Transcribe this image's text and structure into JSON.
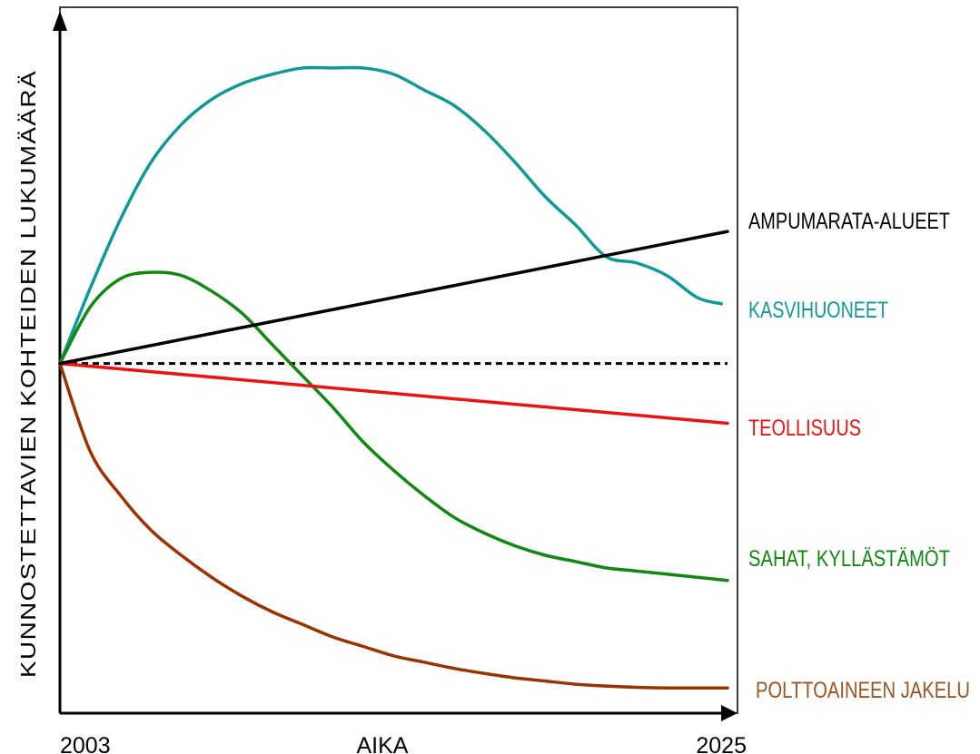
{
  "chart_data": {
    "type": "line",
    "title": "",
    "xlabel": "AIKA",
    "ylabel": "KUNNOSTETTAVIEN KOHTEIDEN LUKUMÄÄRÄ",
    "xlim": [
      2003,
      2025
    ],
    "ylim": [
      0,
      100
    ],
    "x_tick_labels": [
      "2003",
      "2025"
    ],
    "baseline": {
      "style": "dashed",
      "color": "#000000",
      "value": 52
    },
    "series": [
      {
        "name": "AMPUMARATA-ALUEET",
        "color": "#000000",
        "points": [
          [
            2003,
            52
          ],
          [
            2025,
            73
          ]
        ]
      },
      {
        "name": "KASVIHUONEET",
        "color": "#119999",
        "points": [
          [
            2003,
            52
          ],
          [
            2004,
            64
          ],
          [
            2005,
            75
          ],
          [
            2006,
            84
          ],
          [
            2007,
            90
          ],
          [
            2008,
            94
          ],
          [
            2009,
            96.5
          ],
          [
            2010,
            98
          ],
          [
            2011,
            99
          ],
          [
            2012,
            99
          ],
          [
            2013,
            99
          ],
          [
            2014,
            98
          ],
          [
            2015,
            95.5
          ],
          [
            2016,
            93
          ],
          [
            2017,
            89
          ],
          [
            2018,
            84
          ],
          [
            2019,
            78.5
          ],
          [
            2020,
            74
          ],
          [
            2021,
            69
          ],
          [
            2022,
            68
          ],
          [
            2023,
            66
          ],
          [
            2024,
            62.5
          ],
          [
            2024.8,
            61.5
          ]
        ]
      },
      {
        "name": "TEOLLISUUS",
        "color": "#ee1111",
        "points": [
          [
            2003,
            52
          ],
          [
            2025,
            42.5
          ]
        ]
      },
      {
        "name": "SAHAT, KYLLÄSTÄMÖT",
        "color": "#118811",
        "points": [
          [
            2003,
            52
          ],
          [
            2004,
            61
          ],
          [
            2005,
            65.5
          ],
          [
            2006,
            66.5
          ],
          [
            2007,
            66
          ],
          [
            2008,
            63.5
          ],
          [
            2009,
            60
          ],
          [
            2010,
            55
          ],
          [
            2011,
            50
          ],
          [
            2012,
            45
          ],
          [
            2013,
            39.5
          ],
          [
            2014,
            35
          ],
          [
            2015,
            31
          ],
          [
            2016,
            27.5
          ],
          [
            2017,
            25
          ],
          [
            2018,
            23
          ],
          [
            2019,
            21.5
          ],
          [
            2020,
            20.5
          ],
          [
            2021,
            19.5
          ],
          [
            2022,
            19
          ],
          [
            2023,
            18.5
          ],
          [
            2024,
            18
          ],
          [
            2025,
            17.5
          ]
        ]
      },
      {
        "name": "POLTTOAINEEN JAKELU",
        "color": "#993300",
        "label_color": "#995522",
        "points": [
          [
            2003,
            52
          ],
          [
            2004,
            38
          ],
          [
            2005,
            31
          ],
          [
            2006,
            25.5
          ],
          [
            2007,
            21.5
          ],
          [
            2008,
            18
          ],
          [
            2009,
            15
          ],
          [
            2010,
            12.5
          ],
          [
            2011,
            10.5
          ],
          [
            2012,
            8.5
          ],
          [
            2013,
            7
          ],
          [
            2014,
            5.5
          ],
          [
            2015,
            4.5
          ],
          [
            2016,
            3.5
          ],
          [
            2017,
            2.7
          ],
          [
            2018,
            2
          ],
          [
            2019,
            1.5
          ],
          [
            2020,
            1
          ],
          [
            2021,
            0.7
          ],
          [
            2022,
            0.5
          ],
          [
            2023,
            0.4
          ],
          [
            2025,
            0.4
          ]
        ]
      }
    ],
    "grid": false,
    "legend": "none"
  }
}
